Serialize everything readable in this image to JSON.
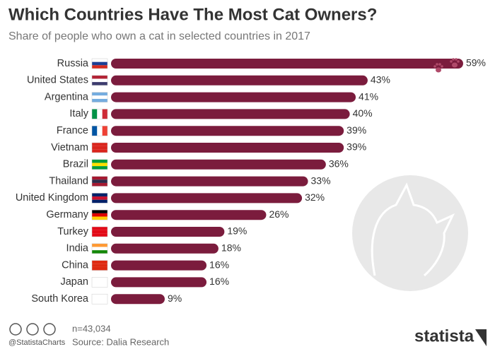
{
  "chart_data": {
    "type": "bar",
    "orientation": "horizontal",
    "title": "Which Countries Have The Most Cat Owners?",
    "subtitle": "Share of people who own a cat in selected countries in 2017",
    "categories": [
      "Russia",
      "United States",
      "Argentina",
      "Italy",
      "France",
      "Vietnam",
      "Brazil",
      "Thailand",
      "United Kingdom",
      "Germany",
      "Turkey",
      "India",
      "China",
      "Japan",
      "South Korea"
    ],
    "values": [
      59,
      43,
      41,
      40,
      39,
      39,
      36,
      33,
      32,
      26,
      19,
      18,
      16,
      16,
      9
    ],
    "value_labels": [
      "59%",
      "43%",
      "41%",
      "40%",
      "39%",
      "39%",
      "36%",
      "33%",
      "32%",
      "26%",
      "19%",
      "18%",
      "16%",
      "16%",
      "9%"
    ],
    "color": "#7b1c3d",
    "note": "n=43,034",
    "source": "Source: Dalia Research",
    "credit": "@StatistaCharts",
    "brand": "statista"
  }
}
